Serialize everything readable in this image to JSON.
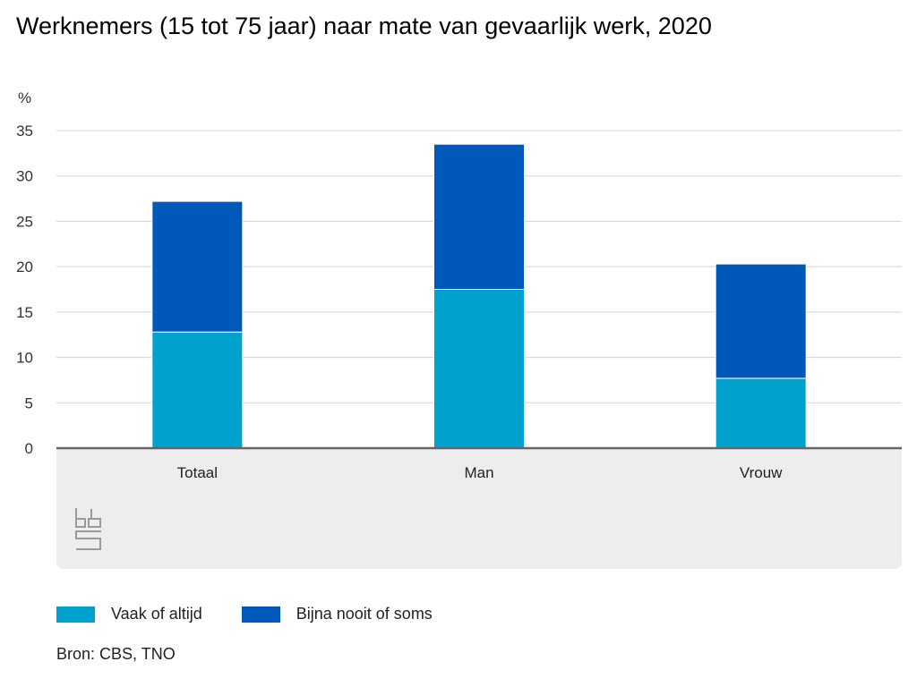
{
  "chart_data": {
    "type": "bar",
    "stacked": true,
    "title": "Werknemers (15 tot 75 jaar) naar mate van gevaarlijk werk, 2020",
    "ylabel": "%",
    "ylim": [
      0,
      35
    ],
    "yticks": [
      0,
      5,
      10,
      15,
      20,
      25,
      30,
      35
    ],
    "grid": true,
    "legend_position": "bottom",
    "categories": [
      "Totaal",
      "Man",
      "Vrouw"
    ],
    "series": [
      {
        "name": "Vaak of altijd",
        "color": "#00a1cd",
        "values": [
          12.8,
          17.5,
          7.7
        ]
      },
      {
        "name": "Bijna nooit of soms",
        "color": "#0058b8",
        "values": [
          14.4,
          16.0,
          12.6
        ]
      }
    ]
  },
  "logo": {
    "label": "cbs",
    "icon": "cbs-logo-icon"
  },
  "source": {
    "label": "Bron:",
    "text": "CBS, TNO"
  }
}
